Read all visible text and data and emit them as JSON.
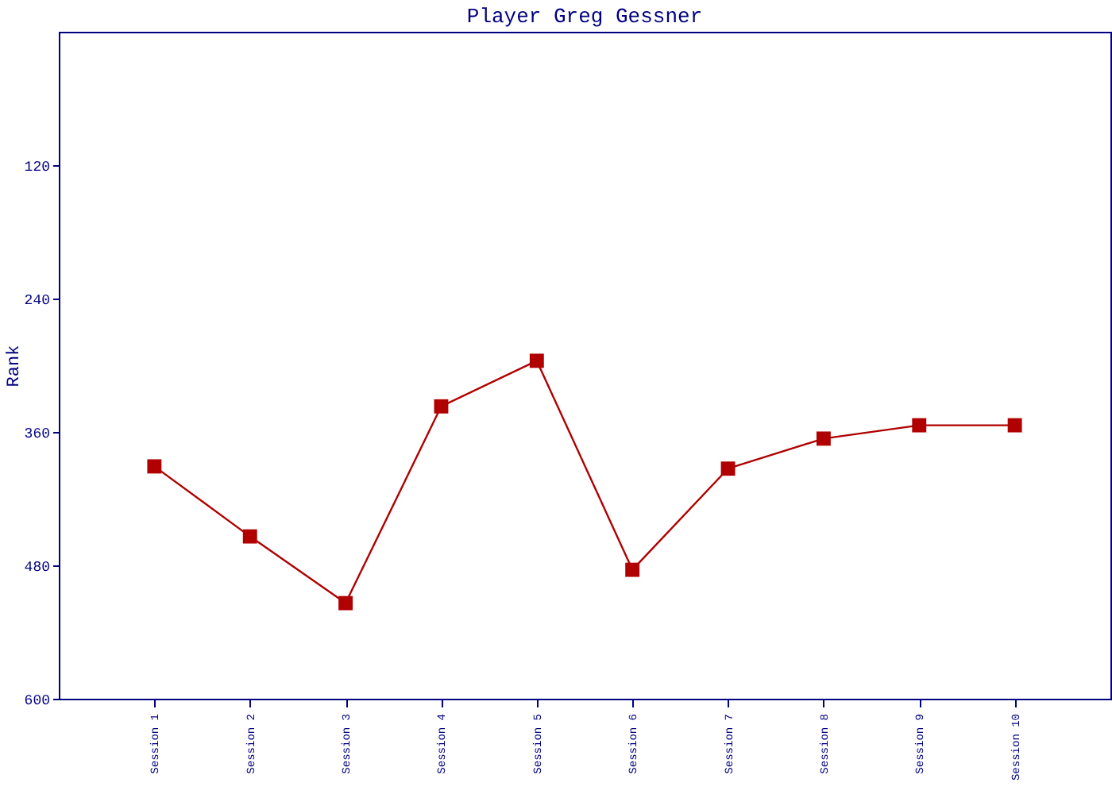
{
  "chart_data": {
    "type": "line",
    "title": "Player Greg Gessner",
    "ylabel": "Rank",
    "categories": [
      "Session 1",
      "Session 2",
      "Session 3",
      "Session 4",
      "Session 5",
      "Session 6",
      "Session 7",
      "Session 8",
      "Session 9",
      "Session 10"
    ],
    "series": [
      {
        "color": "#b00000",
        "values": [
          391,
          454,
          514,
          337,
          296,
          484,
          393,
          366,
          354,
          354
        ]
      }
    ],
    "ylim": [
      600,
      0
    ],
    "yticks": [
      120,
      240,
      360,
      480,
      600
    ],
    "marker": "square",
    "grid": false
  }
}
